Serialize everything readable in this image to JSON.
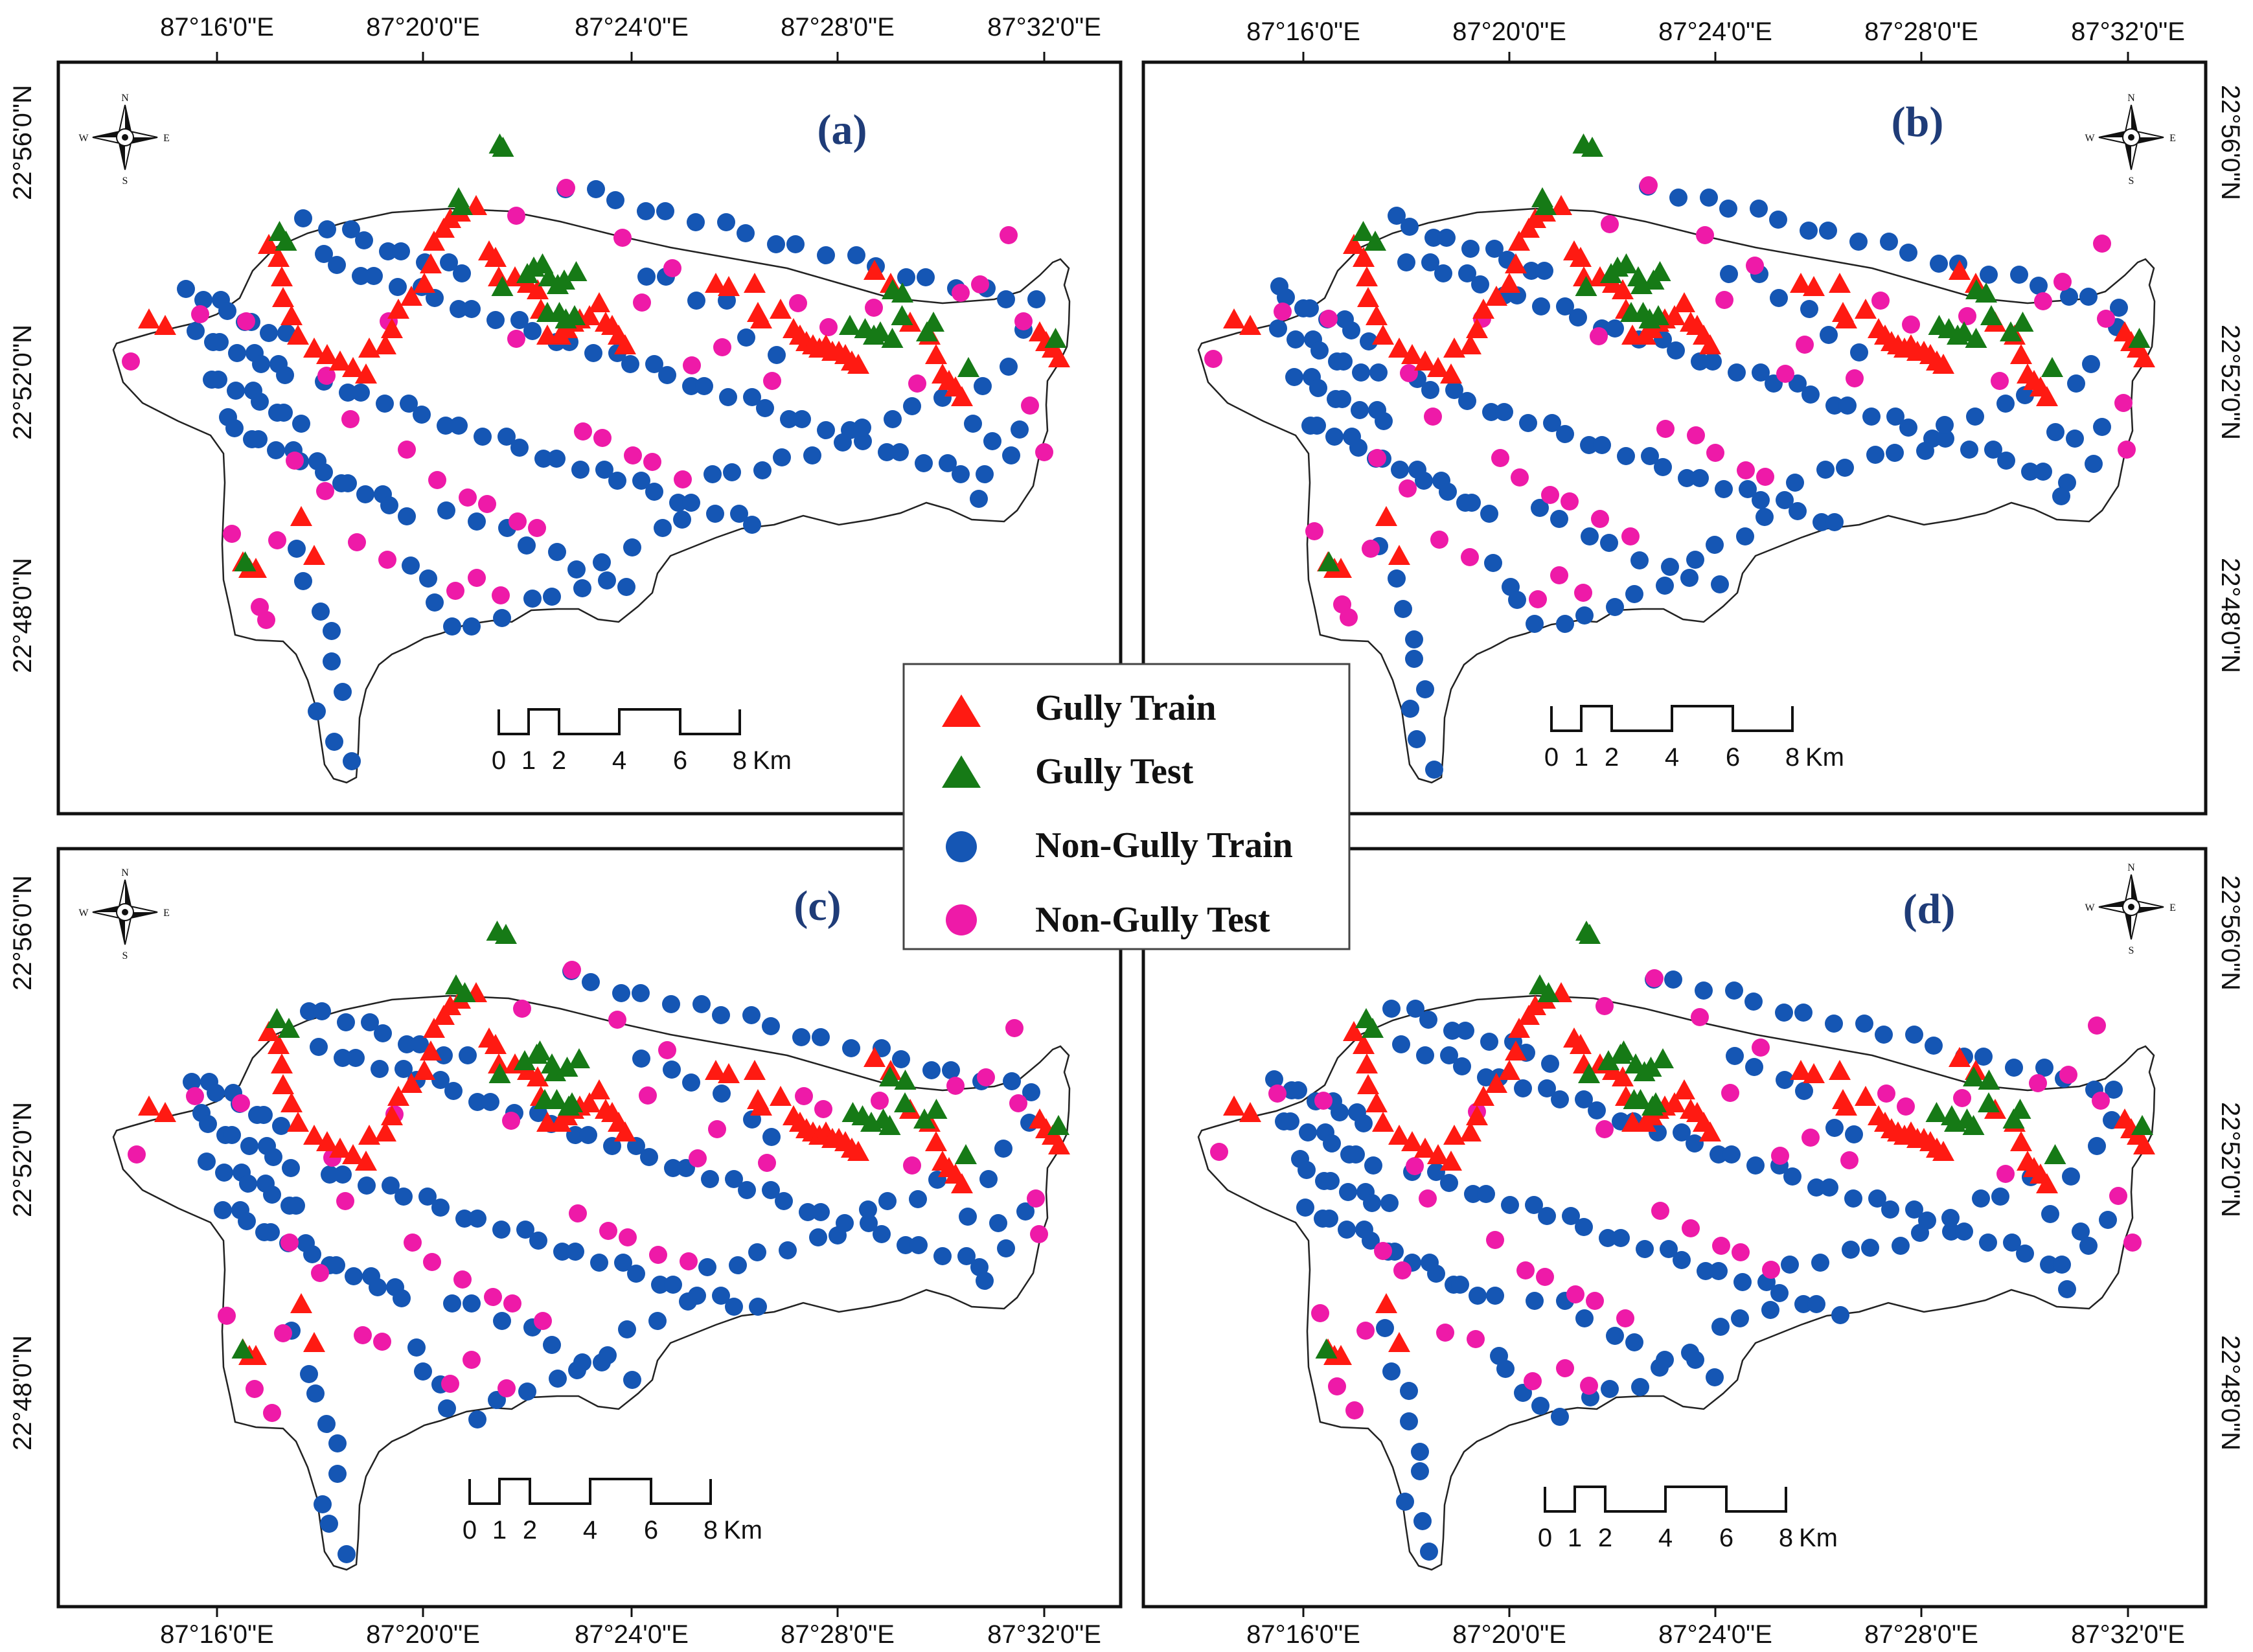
{
  "figure": {
    "top_lon_labels": [
      "87°16'0\"E",
      "87°20'0\"E",
      "87°24'0\"E",
      "87°28'0\"E",
      "87°32'0\"E"
    ],
    "lat_labels": [
      "22°56'0\"N",
      "22°52'0\"N",
      "22°48'0\"N"
    ],
    "panels": [
      {
        "id": "a",
        "label": "(a)"
      },
      {
        "id": "b",
        "label": "(b)"
      },
      {
        "id": "c",
        "label": "(c)"
      },
      {
        "id": "d",
        "label": "(d)"
      }
    ],
    "scale_bar": {
      "ticks": [
        "0",
        "1",
        "2",
        "4",
        "6",
        "8"
      ],
      "unit": "Km"
    },
    "north_arrow": {
      "n": "N",
      "s": "S",
      "e": "E",
      "w": "W"
    }
  },
  "legend": {
    "items": [
      {
        "label": "Gully Train",
        "symbol": "triangle",
        "color": "#ff1a12"
      },
      {
        "label": "Gully Test",
        "symbol": "triangle",
        "color": "#167a16"
      },
      {
        "label": "Non-Gully Train",
        "symbol": "circle",
        "color": "#1556b4"
      },
      {
        "label": "Non-Gully Test",
        "symbol": "circle",
        "color": "#ee1aa8"
      }
    ]
  },
  "colors": {
    "gully_train": "#ff1a12",
    "gully_test": "#167a16",
    "non_gully_train": "#1556b4",
    "non_gully_test": "#ee1aa8"
  }
}
